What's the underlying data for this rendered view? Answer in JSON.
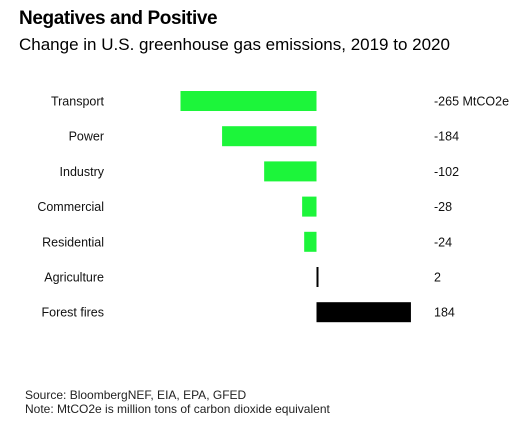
{
  "title": "Negatives and Positive",
  "subtitle": "Change in U.S. greenhouse gas emissions, 2019 to 2020",
  "unit_suffix": " MtCO2e",
  "colors": {
    "negative": "#1cf53a",
    "positive": "#000000"
  },
  "chart_data": {
    "type": "bar",
    "orientation": "horizontal",
    "categories": [
      "Transport",
      "Power",
      "Industry",
      "Commercial",
      "Residential",
      "Agriculture",
      "Forest fires"
    ],
    "values": [
      -265,
      -184,
      -102,
      -28,
      -24,
      2,
      184
    ],
    "value_labels": [
      "-265 MtCO2e",
      "-184",
      "-102",
      "-28",
      "-24",
      "2",
      "184"
    ],
    "xlim": [
      -265,
      184
    ]
  },
  "footer": {
    "source": "Source: BloombergNEF, EIA, EPA, GFED",
    "note": "Note: MtCO2e is million tons of carbon dioxide equivalent"
  }
}
